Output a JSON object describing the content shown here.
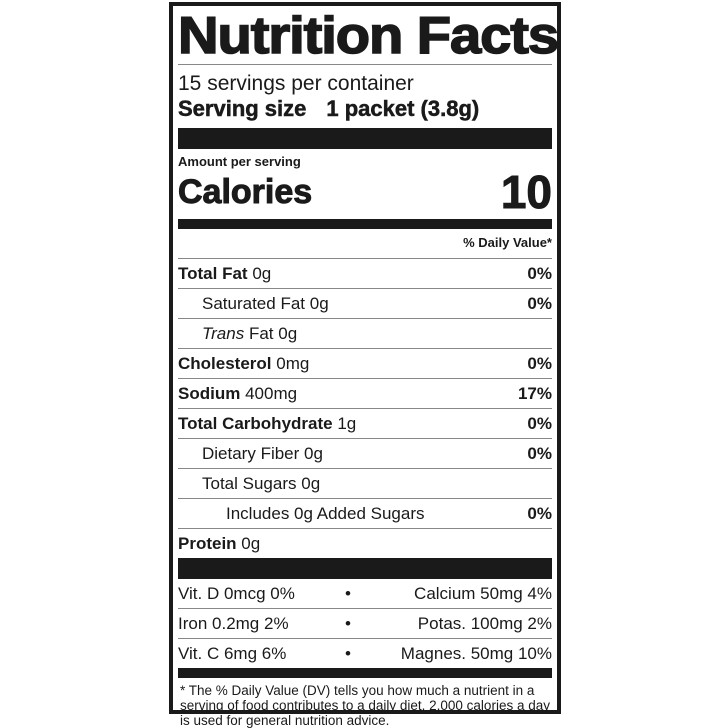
{
  "title": "Nutrition Facts",
  "servings_per_container": "15 servings per container",
  "serving_size": {
    "label": "Serving size",
    "value": "1 packet (3.8g)"
  },
  "amount_per_serving": "Amount per serving",
  "calories": {
    "label": "Calories",
    "value": "10"
  },
  "daily_value_header": "% Daily Value*",
  "nutrients": [
    {
      "name": "Total Fat",
      "amount": "0g",
      "dv": "0%"
    },
    {
      "name": "Saturated Fat",
      "amount": "0g",
      "dv": "0%"
    },
    {
      "name": "Trans",
      "name_rest": "Fat",
      "amount": "0g",
      "dv": ""
    },
    {
      "name": "Cholesterol",
      "amount": "0mg",
      "dv": "0%"
    },
    {
      "name": "Sodium",
      "amount": "400mg",
      "dv": "17%"
    },
    {
      "name": "Total Carbohydrate",
      "amount": "1g",
      "dv": "0%"
    },
    {
      "name": "Dietary Fiber",
      "amount": "0g",
      "dv": "0%"
    },
    {
      "name": "Total Sugars",
      "amount": "0g",
      "dv": ""
    },
    {
      "name": "Includes 0g Added Sugars",
      "amount": "",
      "dv": "0%"
    },
    {
      "name": "Protein",
      "amount": "0g",
      "dv": ""
    }
  ],
  "vitamins": [
    {
      "left": "Vit. D 0mcg 0%",
      "right": "Calcium 50mg 4%"
    },
    {
      "left": "Iron 0.2mg 2%",
      "right": "Potas. 100mg 2%"
    },
    {
      "left": "Vit. C 6mg 6%",
      "right": "Magnes. 50mg 10%"
    }
  ],
  "separator": "•",
  "footnote": "* The % Daily Value (DV) tells you how much a nutrient in a serving of food contributes to a daily diet. 2,000 calories a day is used for general nutrition advice."
}
